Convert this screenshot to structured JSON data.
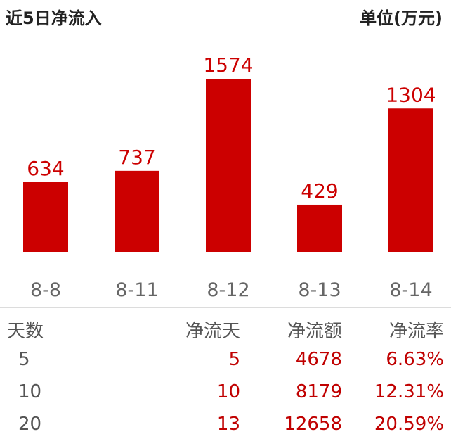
{
  "header": {
    "title": "近5日净流入",
    "unit": "单位(万元)"
  },
  "chart_data": {
    "type": "bar",
    "title": "近5日净流入",
    "categories": [
      "8-8",
      "8-11",
      "8-12",
      "8-13",
      "8-14"
    ],
    "values": [
      634,
      737,
      1574,
      429,
      1304
    ],
    "bar_color": "#cc0000",
    "label_color": "#cc0000",
    "ylim": [
      0,
      1600
    ],
    "grid": false
  },
  "table": {
    "headers": [
      "天数",
      "净流天",
      "净流额",
      "净流率"
    ],
    "rows": [
      [
        "5",
        "5",
        "4678",
        "6.63%"
      ],
      [
        "10",
        "10",
        "8179",
        "12.31%"
      ],
      [
        "20",
        "13",
        "12658",
        "20.59%"
      ]
    ]
  }
}
